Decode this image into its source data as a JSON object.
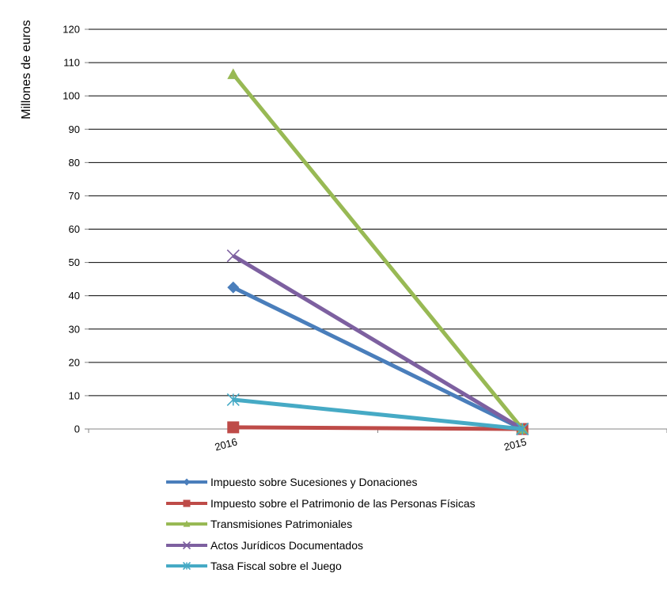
{
  "chart_data": {
    "type": "line",
    "ylabel": "Millones de euros",
    "xlabel": "",
    "categories": [
      "2016",
      "2015"
    ],
    "ylim": [
      0,
      120
    ],
    "yticks": [
      0,
      10,
      20,
      30,
      40,
      50,
      60,
      70,
      80,
      90,
      100,
      110,
      120
    ],
    "grid": true,
    "legend_position": "bottom",
    "series": [
      {
        "name": "Impuesto sobre Sucesiones y Donaciones",
        "values": [
          42.5,
          0
        ],
        "color": "#4a7ebb",
        "marker": "diamond"
      },
      {
        "name": "Impuesto sobre el Patrimonio de las Personas Físicas",
        "values": [
          0.5,
          0
        ],
        "color": "#be4b48",
        "marker": "square"
      },
      {
        "name": "Transmisiones Patrimoniales",
        "values": [
          106.5,
          0
        ],
        "color": "#98b954",
        "marker": "triangle"
      },
      {
        "name": "Actos Jurídicos Documentados",
        "values": [
          52,
          0
        ],
        "color": "#7d60a0",
        "marker": "x"
      },
      {
        "name": "Tasa Fiscal sobre el Juego",
        "values": [
          8.8,
          0
        ],
        "color": "#46aac5",
        "marker": "asterisk"
      }
    ]
  }
}
